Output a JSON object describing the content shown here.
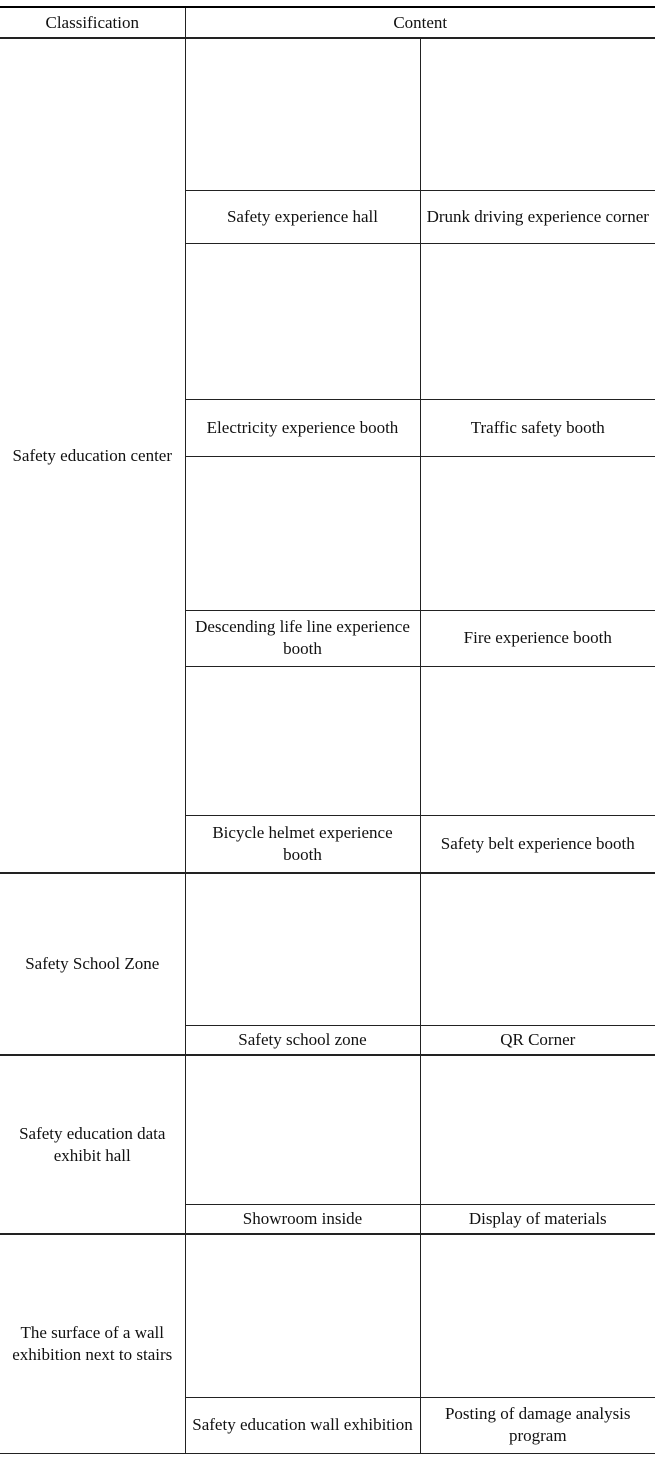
{
  "table": {
    "header": [
      "Classification",
      "Content"
    ],
    "sections": [
      {
        "classification": "Safety education center",
        "rows": [
          [
            "Safety experience hall",
            "Drunk driving experience corner"
          ],
          [
            "Electricity experience booth",
            "Traffic safety booth"
          ],
          [
            "Descending life line experience booth",
            "Fire experience booth"
          ],
          [
            "Bicycle helmet experience booth",
            "Safety belt experience booth"
          ]
        ]
      },
      {
        "classification": "Safety School Zone",
        "rows": [
          [
            "Safety school zone",
            "QR Corner"
          ]
        ]
      },
      {
        "classification": "Safety education data exhibit hall",
        "rows": [
          [
            "Showroom inside",
            "Display of materials"
          ]
        ]
      },
      {
        "classification": "The surface of a wall exhibition next to stairs",
        "rows": [
          [
            "Safety education wall exhibition",
            "Posting of damage analysis program"
          ]
        ]
      }
    ]
  }
}
